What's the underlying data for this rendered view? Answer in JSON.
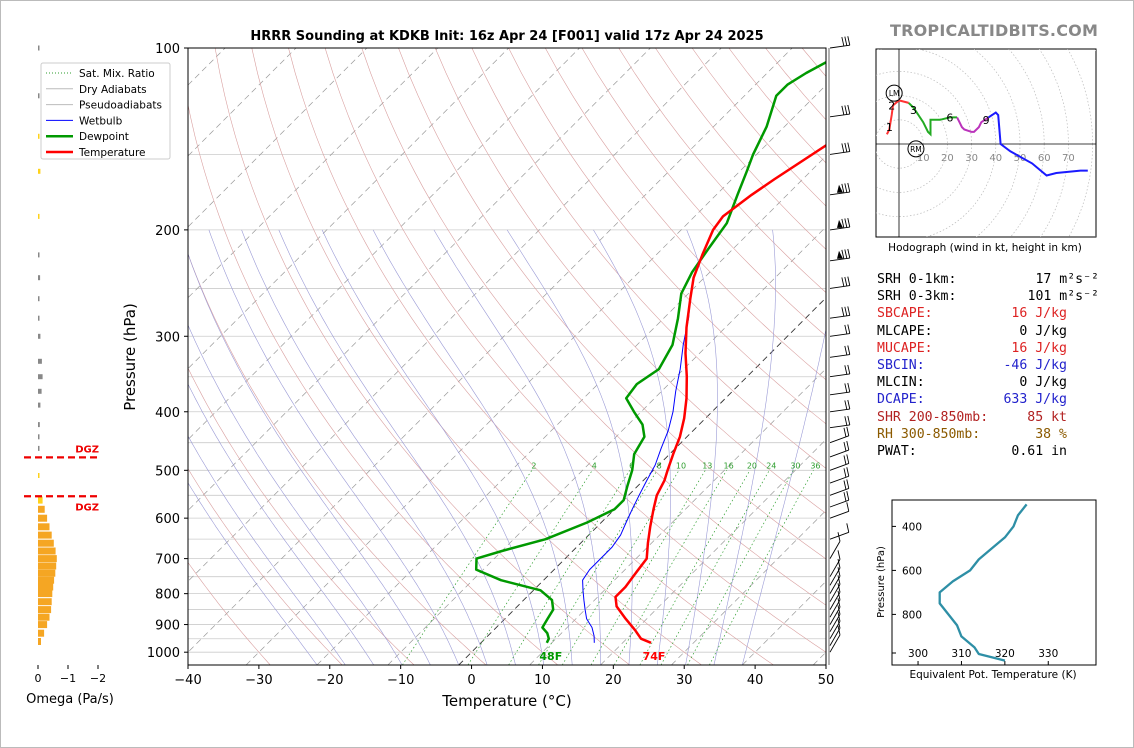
{
  "brand": "TROPICALTIDBITS.COM",
  "colors": {
    "temperature": "#ff0000",
    "dewpoint": "#009900",
    "wetbulb": "#0000ff",
    "dry_adiabat": "#d9a0a0",
    "pseudoadiabat": "#9b9bd6",
    "mixing_ratio": "#2e9e2e",
    "omega_up": "#f5a623",
    "omega_down": "#888888",
    "hodo_0_1": "#ff3333",
    "hodo_1_3": "#22aa22",
    "hodo_3_6": "#bb33bb",
    "hodo_6_9": "#1a1aff",
    "theta_e": "#2e8fa6",
    "red_label": "#dd2222",
    "blue_label": "#2222cc",
    "brown_label": "#8b5a00",
    "darkred_label": "#b22222"
  },
  "chart_data": [
    {
      "type": "line",
      "name": "skew-t",
      "title": "HRRR Sounding at KDKB Init: 16z Apr 24 [F001] valid 17z Apr 24 2025",
      "xlabel": "Temperature (°C)",
      "ylabel": "Pressure (hPa)",
      "xlim": [
        -40,
        50
      ],
      "ylim": [
        1050,
        100
      ],
      "log_y": true,
      "x_ticks": [
        -40,
        -30,
        -20,
        -10,
        0,
        10,
        20,
        30,
        40,
        50
      ],
      "y_ticks": [
        100,
        200,
        300,
        400,
        500,
        600,
        700,
        800,
        900,
        1000
      ],
      "legend": [
        "Sat. Mix. Ratio",
        "Dry Adiabats",
        "Pseudoadiabats",
        "Wetbulb",
        "Dewpoint",
        "Temperature"
      ],
      "legend_position": "top-left",
      "mixing_ratio_labels": [
        "2",
        "4",
        "6",
        "8",
        "10",
        "13",
        "16",
        "20",
        "24",
        "30",
        "36"
      ],
      "surface_labels": {
        "dewpoint": "48F",
        "temperature": "74F"
      },
      "series": [
        {
          "name": "Temperature",
          "points": [
            [
              24.0,
              965
            ],
            [
              22.0,
              950
            ],
            [
              20.0,
              920
            ],
            [
              17.0,
              880
            ],
            [
              14.0,
              840
            ],
            [
              12.5,
              810
            ],
            [
              12.5,
              780
            ],
            [
              12.0,
              740
            ],
            [
              11.5,
              700
            ],
            [
              9.5,
              660
            ],
            [
              7.5,
              620
            ],
            [
              5.5,
              580
            ],
            [
              4.0,
              550
            ],
            [
              3.0,
              520
            ],
            [
              2.0,
              500
            ],
            [
              0.5,
              470
            ],
            [
              -1.0,
              440
            ],
            [
              -3.0,
              410
            ],
            [
              -5.5,
              380
            ],
            [
              -8.5,
              350
            ],
            [
              -12.0,
              320
            ],
            [
              -15.5,
              290
            ],
            [
              -19.0,
              260
            ],
            [
              -21.5,
              240
            ],
            [
              -23.5,
              220
            ],
            [
              -25.5,
              200
            ],
            [
              -26.0,
              190
            ],
            [
              -25.0,
              175
            ],
            [
              -24.0,
              165
            ],
            [
              -21.5,
              145
            ],
            [
              -19.5,
              130
            ],
            [
              -17.0,
              120
            ],
            [
              -16.0,
              115
            ],
            [
              -14.0,
              108
            ],
            [
              -12.0,
              100
            ]
          ]
        },
        {
          "name": "Dewpoint",
          "points": [
            [
              9.3,
              965
            ],
            [
              9.0,
              950
            ],
            [
              8.0,
              930
            ],
            [
              6.5,
              910
            ],
            [
              6.0,
              880
            ],
            [
              5.5,
              850
            ],
            [
              4.0,
              820
            ],
            [
              1.0,
              790
            ],
            [
              -6.0,
              760
            ],
            [
              -11.0,
              730
            ],
            [
              -12.5,
              700
            ],
            [
              -10.0,
              680
            ],
            [
              -5.5,
              650
            ],
            [
              -2.0,
              610
            ],
            [
              0.0,
              580
            ],
            [
              0.0,
              560
            ],
            [
              -1.5,
              530
            ],
            [
              -3.0,
              500
            ],
            [
              -5.0,
              470
            ],
            [
              -6.0,
              440
            ],
            [
              -8.0,
              420
            ],
            [
              -11.0,
              400
            ],
            [
              -14.0,
              380
            ],
            [
              -14.5,
              360
            ],
            [
              -13.5,
              340
            ],
            [
              -15.0,
              310
            ],
            [
              -18.0,
              280
            ],
            [
              -21.0,
              255
            ],
            [
              -22.5,
              235
            ],
            [
              -23.5,
              215
            ],
            [
              -24.5,
              195
            ],
            [
              -27.0,
              175
            ],
            [
              -29.0,
              160
            ],
            [
              -30.5,
              150
            ],
            [
              -32.5,
              135
            ],
            [
              -35.5,
              120
            ],
            [
              -35.5,
              115
            ],
            [
              -34.5,
              110
            ],
            [
              -31.5,
              100
            ]
          ]
        },
        {
          "name": "Wetbulb",
          "points": [
            [
              16.0,
              965
            ],
            [
              15.0,
              940
            ],
            [
              13.5,
              910
            ],
            [
              11.5,
              880
            ],
            [
              10.0,
              850
            ],
            [
              8.5,
              820
            ],
            [
              7.0,
              790
            ],
            [
              5.5,
              760
            ],
            [
              5.0,
              730
            ],
            [
              5.0,
              700
            ],
            [
              5.0,
              670
            ],
            [
              4.5,
              640
            ],
            [
              3.5,
              610
            ],
            [
              2.5,
              580
            ],
            [
              1.5,
              550
            ],
            [
              0.5,
              520
            ],
            [
              -0.5,
              490
            ],
            [
              -2.0,
              460
            ],
            [
              -3.5,
              430
            ],
            [
              -5.5,
              400
            ],
            [
              -8.0,
              370
            ],
            [
              -10.5,
              340
            ],
            [
              -13.5,
              310
            ],
            [
              -16.5,
              280
            ],
            [
              -19.0,
              260
            ]
          ]
        }
      ]
    },
    {
      "type": "bar",
      "name": "omega",
      "xlabel": "Omega (Pa/s)",
      "x_ticks": [
        0,
        -1,
        -2
      ],
      "annotations": [
        "DGZ",
        "DGZ"
      ],
      "dgz_top_hPa": 476,
      "dgz_bottom_hPa": 552,
      "values": [
        [
          100,
          -0.05,
          "down"
        ],
        [
          120,
          -0.05,
          "down"
        ],
        [
          140,
          -0.03,
          "up"
        ],
        [
          160,
          -0.08,
          "up"
        ],
        [
          190,
          -0.03,
          "up"
        ],
        [
          220,
          -0.05,
          "down"
        ],
        [
          240,
          -0.07,
          "down"
        ],
        [
          260,
          -0.04,
          "down"
        ],
        [
          280,
          -0.05,
          "down"
        ],
        [
          300,
          -0.08,
          "down"
        ],
        [
          330,
          -0.13,
          "down"
        ],
        [
          350,
          -0.15,
          "down"
        ],
        [
          370,
          -0.12,
          "down"
        ],
        [
          390,
          -0.08,
          "down"
        ],
        [
          420,
          -0.06,
          "down"
        ],
        [
          440,
          -0.04,
          "down"
        ],
        [
          460,
          -0.02,
          "down"
        ],
        [
          510,
          -0.04,
          "up"
        ],
        [
          560,
          -0.15,
          "up"
        ],
        [
          580,
          -0.22,
          "up"
        ],
        [
          600,
          -0.3,
          "up"
        ],
        [
          620,
          -0.38,
          "up"
        ],
        [
          640,
          -0.45,
          "up"
        ],
        [
          660,
          -0.52,
          "up"
        ],
        [
          680,
          -0.58,
          "up"
        ],
        [
          700,
          -0.62,
          "up"
        ],
        [
          720,
          -0.6,
          "up"
        ],
        [
          740,
          -0.57,
          "up"
        ],
        [
          760,
          -0.53,
          "up"
        ],
        [
          780,
          -0.5,
          "up"
        ],
        [
          800,
          -0.47,
          "up"
        ],
        [
          825,
          -0.45,
          "up"
        ],
        [
          850,
          -0.43,
          "up"
        ],
        [
          875,
          -0.38,
          "up"
        ],
        [
          900,
          -0.3,
          "up"
        ],
        [
          930,
          -0.2,
          "up"
        ],
        [
          960,
          -0.1,
          "up"
        ]
      ]
    },
    {
      "type": "line",
      "name": "hodograph",
      "caption": "Hodograph (wind in kt, height in km)",
      "ring_labels": [
        "10",
        "20",
        "30",
        "40",
        "50",
        "60",
        "70"
      ],
      "markers": {
        "LM": [
          -2,
          21
        ],
        "RM": [
          7,
          -2
        ]
      },
      "height_labels": [
        {
          "label": "1",
          "u": -4,
          "v": 7
        },
        {
          "label": "2",
          "u": -3,
          "v": 16
        },
        {
          "label": "3",
          "u": 6,
          "v": 14
        },
        {
          "label": "6",
          "u": 21,
          "v": 11
        },
        {
          "label": "9",
          "u": 36,
          "v": 10
        }
      ],
      "series": [
        {
          "name": "0-1 km",
          "points": [
            [
              -5,
              4
            ],
            [
              -4,
              6
            ],
            [
              -3.5,
              9
            ],
            [
              -3,
              12
            ],
            [
              -2.5,
              16
            ],
            [
              0,
              18
            ],
            [
              4,
              17
            ]
          ]
        },
        {
          "name": "1-3 km",
          "points": [
            [
              4,
              17
            ],
            [
              6,
              15
            ],
            [
              8,
              12
            ],
            [
              10,
              9
            ],
            [
              12,
              5
            ],
            [
              13,
              4
            ],
            [
              13,
              10
            ],
            [
              17,
              10
            ],
            [
              21,
              11
            ],
            [
              24,
              11
            ]
          ]
        },
        {
          "name": "3-6 km",
          "points": [
            [
              24,
              11
            ],
            [
              25,
              9
            ],
            [
              26,
              7
            ],
            [
              27,
              6
            ],
            [
              30,
              5
            ],
            [
              31,
              5
            ],
            [
              33,
              7
            ],
            [
              34,
              9
            ],
            [
              37,
              11
            ]
          ]
        },
        {
          "name": "6-9 km",
          "points": [
            [
              37,
              11
            ],
            [
              40,
              13
            ],
            [
              41,
              12
            ],
            [
              42,
              0
            ],
            [
              46,
              -3
            ],
            [
              55,
              -8
            ],
            [
              61,
              -13
            ],
            [
              65,
              -12
            ],
            [
              75,
              -11
            ],
            [
              78,
              -11
            ]
          ]
        }
      ]
    },
    {
      "type": "line",
      "name": "theta-e",
      "xlabel": "Equivalent Pot. Temperature (K)",
      "ylabel": "Pressure (hPa)",
      "x_ticks": [
        300,
        310,
        320,
        330
      ],
      "y_ticks": [
        400,
        600,
        800
      ],
      "series": [
        {
          "name": "theta-e",
          "points": [
            [
              325,
              300
            ],
            [
              323,
              350
            ],
            [
              322,
              400
            ],
            [
              320,
              450
            ],
            [
              317,
              500
            ],
            [
              314,
              550
            ],
            [
              312,
              600
            ],
            [
              308,
              650
            ],
            [
              305,
              700
            ],
            [
              305,
              750
            ],
            [
              307,
              800
            ],
            [
              309,
              850
            ],
            [
              310,
              900
            ],
            [
              313,
              950
            ],
            [
              314,
              980
            ],
            [
              318,
              1000
            ],
            [
              320,
              1010
            ]
          ]
        }
      ]
    }
  ],
  "stats": [
    {
      "label": "SRH 0-1km:",
      "value": "17",
      "unit": "m²s⁻²",
      "color": "#000000"
    },
    {
      "label": "SRH 0-3km:",
      "value": "101",
      "unit": "m²s⁻²",
      "color": "#000000"
    },
    {
      "label": "SBCAPE:",
      "value": "16 J/kg",
      "unit": "",
      "color": "#dd2222"
    },
    {
      "label": "MLCAPE:",
      "value": "0 J/kg",
      "unit": "",
      "color": "#000000"
    },
    {
      "label": "MUCAPE:",
      "value": "16 J/kg",
      "unit": "",
      "color": "#dd2222"
    },
    {
      "label": "SBCIN:",
      "value": "-46 J/kg",
      "unit": "",
      "color": "#2222cc"
    },
    {
      "label": "MLCIN:",
      "value": "0 J/kg",
      "unit": "",
      "color": "#000000"
    },
    {
      "label": "DCAPE:",
      "value": "633 J/kg",
      "unit": "",
      "color": "#2222cc"
    },
    {
      "label": "SHR 200-850mb:",
      "value": "85 kt",
      "unit": "",
      "color": "#b22222"
    },
    {
      "label": "RH 300-850mb:",
      "value": "38 %",
      "unit": "",
      "color": "#8b5a00"
    },
    {
      "label": "PWAT:",
      "value": "0.61 in",
      "unit": "",
      "color": "#000000"
    }
  ]
}
